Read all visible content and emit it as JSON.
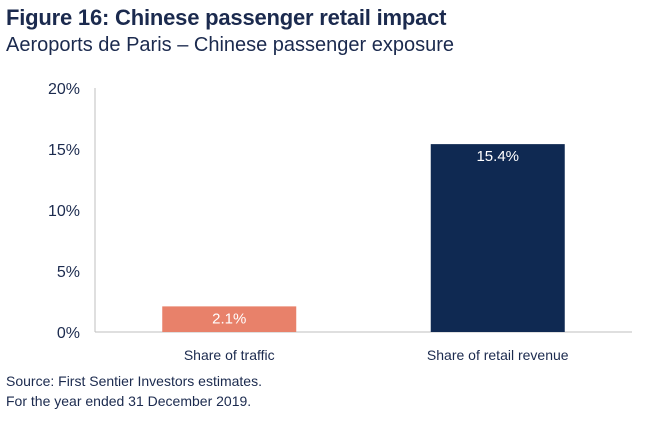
{
  "chart_data": {
    "type": "bar",
    "title": "Figure 16: Chinese passenger retail impact",
    "subtitle": "Aeroports de Paris – Chinese passenger exposure",
    "categories": [
      "Share of traffic",
      "Share of retail revenue"
    ],
    "values": [
      2.1,
      15.4
    ],
    "data_labels": [
      "2.1%",
      "15.4%"
    ],
    "colors": [
      "#e8816a",
      "#0f2952"
    ],
    "label_colors": [
      "#ffffff",
      "#ffffff"
    ],
    "yticks": [
      0,
      5,
      10,
      15,
      20
    ],
    "ytick_labels": [
      "0%",
      "5%",
      "10%",
      "15%",
      "20%"
    ],
    "ylim": [
      0,
      20
    ],
    "xlabel": "",
    "ylabel": "",
    "grid": false
  },
  "source": {
    "line1": "Source: First Sentier Investors estimates.",
    "line2": "For the year ended 31 December 2019."
  }
}
